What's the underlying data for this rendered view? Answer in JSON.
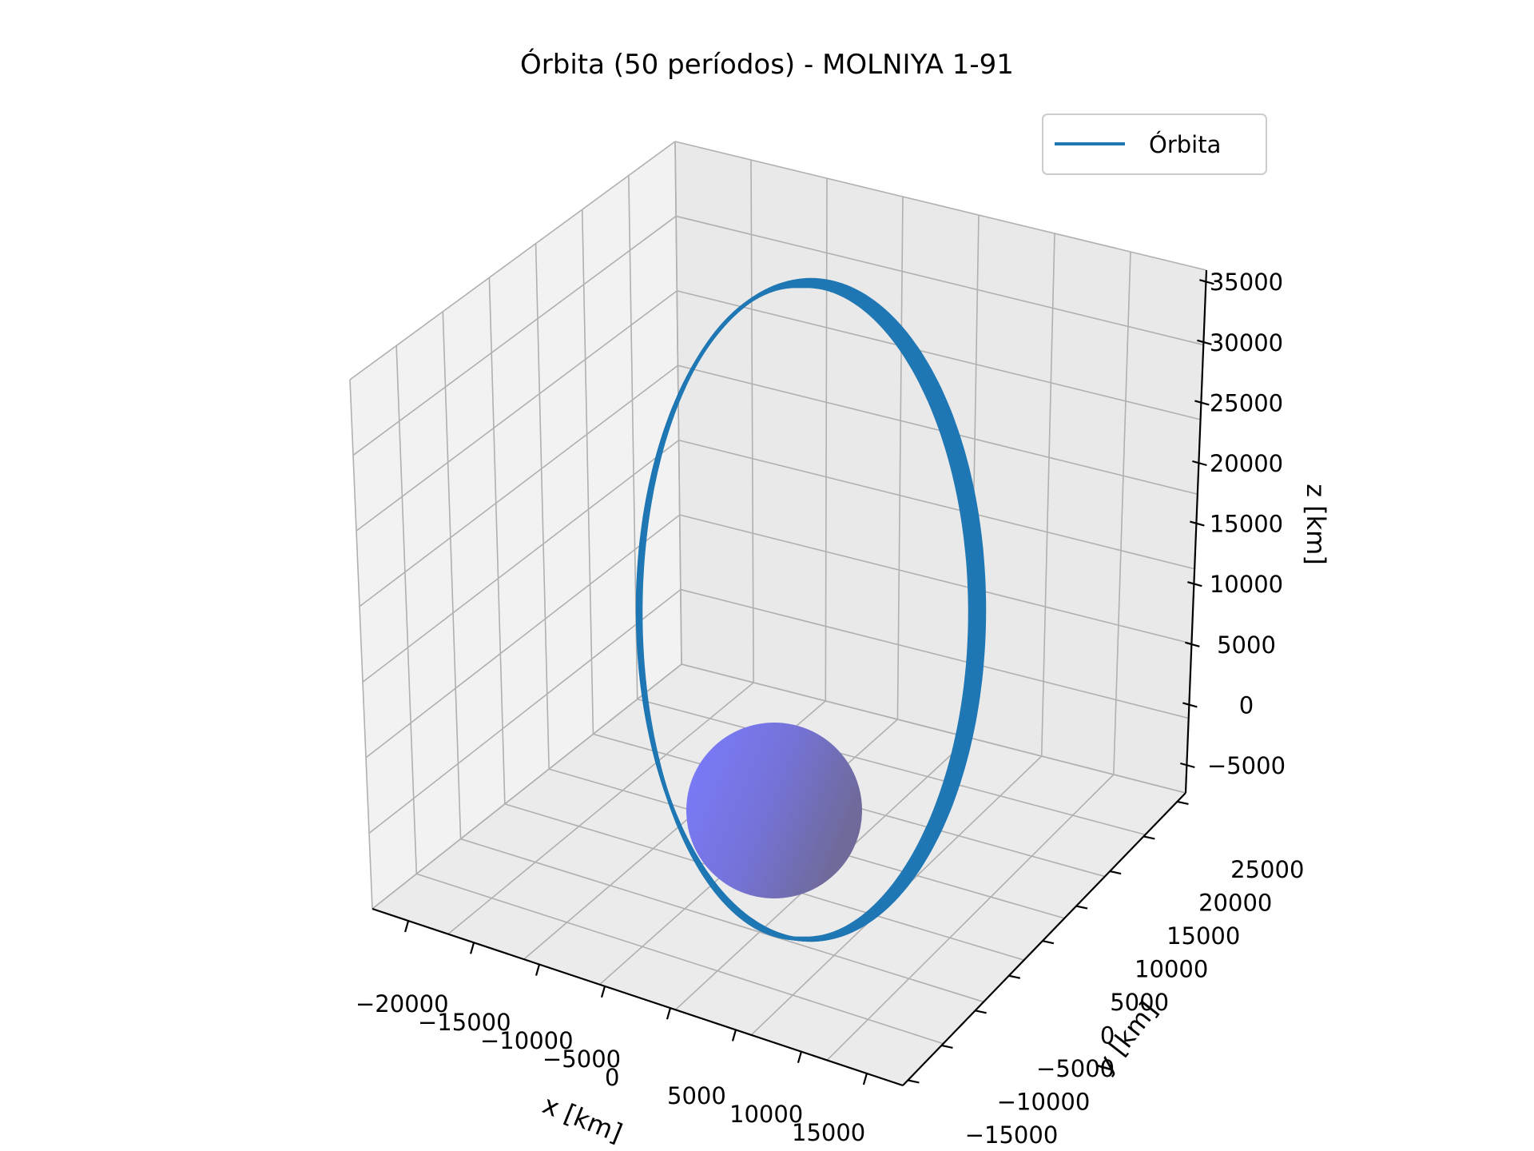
{
  "chart_data": {
    "type": "line3d",
    "title": "Órbita (50 períodos) - MOLNIYA 1-91",
    "xlabel": "x [km]",
    "ylabel": "y [km]",
    "zlabel": "z [km]",
    "x_ticks": [
      "−20000",
      "−15000",
      "−10000",
      "−5000",
      "0",
      "5000",
      "10000",
      "15000"
    ],
    "y_ticks": [
      "−15000",
      "−10000",
      "−5000",
      "0",
      "5000",
      "10000",
      "15000",
      "20000",
      "25000"
    ],
    "z_ticks": [
      "−5000",
      "0",
      "5000",
      "10000",
      "15000",
      "20000",
      "25000",
      "30000",
      "35000"
    ],
    "xlim": [
      -22000,
      17000
    ],
    "ylim": [
      -16000,
      29000
    ],
    "zlim": [
      -8000,
      36500
    ],
    "grid": true,
    "legend": {
      "placement": "top-right",
      "entries": [
        "Órbita"
      ]
    },
    "series": [
      {
        "name": "Órbita",
        "color": "#1f77b4",
        "kind": "orbit",
        "periods": 50,
        "perigee_point_km": [
          0,
          0,
          -7500
        ],
        "apogee_point_km": [
          0,
          25000,
          37000
        ],
        "orbit_width_km": 24000
      }
    ],
    "earth": {
      "radius_km": 6378,
      "color": "#7b7bff"
    }
  }
}
